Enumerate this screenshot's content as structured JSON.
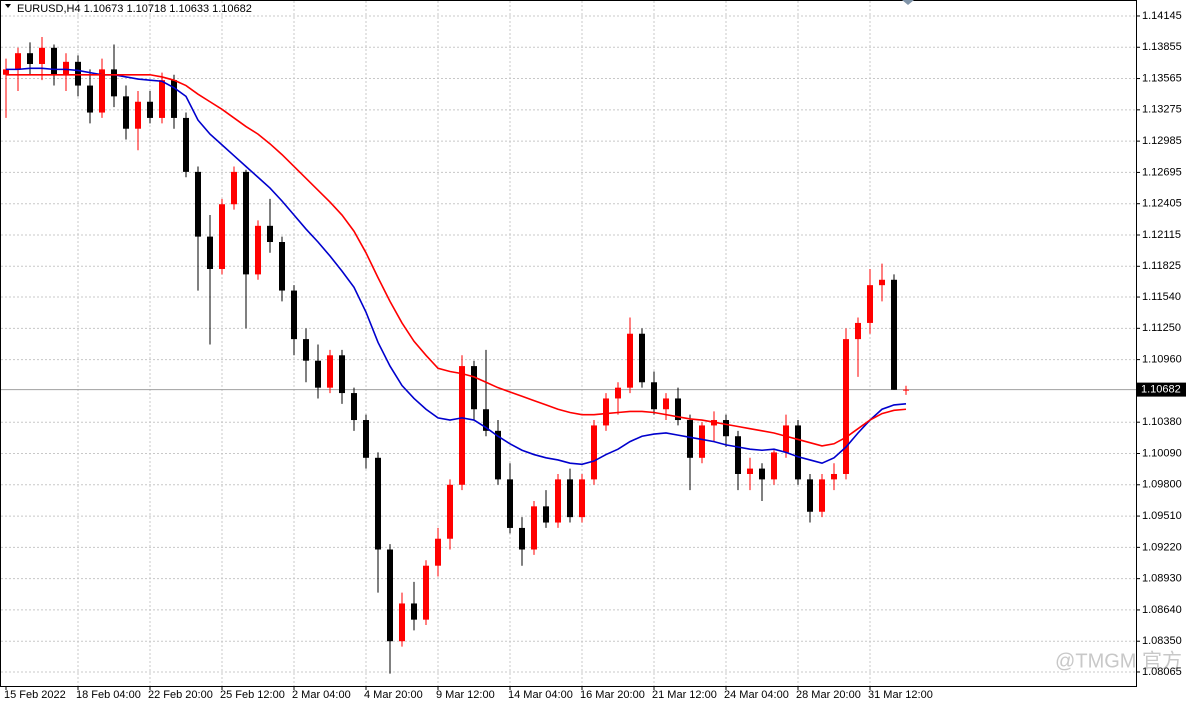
{
  "chart_data": {
    "type": "candlestick",
    "symbol": "EURUSD,H4",
    "categories": [
      "15 Feb 2022",
      null,
      null,
      null,
      null,
      null,
      "18 Feb 04:00",
      null,
      null,
      null,
      null,
      null,
      "22 Feb 20:00",
      null,
      null,
      null,
      null,
      null,
      "25 Feb 12:00",
      null,
      null,
      null,
      null,
      null,
      "2 Mar 04:00",
      null,
      null,
      null,
      null,
      null,
      "4 Mar 20:00",
      null,
      null,
      null,
      null,
      null,
      "9 Mar 12:00",
      null,
      null,
      null,
      null,
      null,
      "14 Mar 04:00",
      null,
      null,
      null,
      null,
      null,
      "16 Mar 20:00",
      null,
      null,
      null,
      null,
      null,
      "21 Mar 12:00",
      null,
      null,
      null,
      null,
      null,
      "24 Mar 04:00",
      null,
      null,
      null,
      null,
      null,
      "28 Mar 20:00",
      null,
      null,
      null,
      null,
      null,
      "31 Mar 12:00",
      null,
      null,
      null
    ],
    "open": [
      1.136,
      1.1365,
      1.138,
      1.137,
      1.1385,
      1.136,
      1.1372,
      1.135,
      1.1325,
      1.1365,
      1.134,
      1.131,
      1.1335,
      1.132,
      1.1355,
      1.132,
      1.127,
      1.121,
      1.118,
      1.124,
      1.127,
      1.1175,
      1.122,
      1.1205,
      1.116,
      1.1115,
      1.1095,
      1.107,
      1.11,
      1.1065,
      1.104,
      1.1005,
      1.092,
      1.0835,
      1.087,
      1.0855,
      1.0905,
      1.093,
      1.098,
      1.109,
      1.105,
      1.103,
      1.0985,
      1.094,
      1.092,
      1.096,
      1.0945,
      1.0985,
      1.095,
      1.0985,
      1.1035,
      1.106,
      1.107,
      1.112,
      1.1075,
      1.105,
      1.106,
      1.104,
      1.1005,
      1.1035,
      1.104,
      1.1025,
      1.099,
      1.0995,
      1.0985,
      1.101,
      1.1035,
      1.0985,
      1.0955,
      1.0985,
      1.099,
      1.1115,
      1.113,
      1.1165,
      1.117,
      1.10673
    ],
    "high": [
      1.1375,
      1.1385,
      1.139,
      1.1395,
      1.1388,
      1.138,
      1.1378,
      1.1365,
      1.1375,
      1.1388,
      1.135,
      1.1345,
      1.1345,
      1.1362,
      1.136,
      1.1325,
      1.1275,
      1.123,
      1.1245,
      1.1275,
      1.1272,
      1.1225,
      1.1245,
      1.121,
      1.1165,
      1.1125,
      1.111,
      1.1105,
      1.1105,
      1.107,
      1.1045,
      1.101,
      1.0925,
      1.088,
      1.089,
      1.091,
      1.094,
      1.0985,
      1.11,
      1.1095,
      1.1105,
      1.104,
      1.1,
      1.095,
      1.0965,
      1.0975,
      1.099,
      1.0995,
      1.099,
      1.104,
      1.1065,
      1.1075,
      1.1135,
      1.1125,
      1.1085,
      1.1065,
      1.107,
      1.1045,
      1.1038,
      1.1048,
      1.1045,
      1.103,
      1.1005,
      1.1,
      1.1012,
      1.1045,
      1.104,
      1.099,
      1.099,
      1.1,
      1.1125,
      1.1135,
      1.118,
      1.1185,
      1.1175,
      1.10718
    ],
    "low": [
      1.132,
      1.1345,
      1.136,
      1.1355,
      1.135,
      1.1345,
      1.134,
      1.1315,
      1.132,
      1.133,
      1.13,
      1.129,
      1.1315,
      1.1315,
      1.131,
      1.1265,
      1.116,
      1.111,
      1.1175,
      1.1235,
      1.1125,
      1.117,
      1.1195,
      1.115,
      1.11,
      1.1075,
      1.106,
      1.1065,
      1.1055,
      1.103,
      1.0995,
      1.088,
      1.0805,
      1.083,
      1.0845,
      1.085,
      1.0895,
      1.092,
      1.0975,
      1.104,
      1.1025,
      1.098,
      1.0935,
      1.0905,
      1.0915,
      1.094,
      1.094,
      1.0945,
      1.0945,
      1.098,
      1.103,
      1.1045,
      1.1065,
      1.107,
      1.1045,
      1.104,
      1.1035,
      1.0975,
      1.1,
      1.102,
      1.1015,
      1.0975,
      1.0975,
      1.0965,
      1.098,
      1.1005,
      1.098,
      1.0945,
      1.095,
      1.0975,
      1.0985,
      1.108,
      1.112,
      1.115,
      1.1068,
      1.10633
    ],
    "close": [
      1.1365,
      1.138,
      1.137,
      1.1385,
      1.136,
      1.1372,
      1.135,
      1.1325,
      1.1365,
      1.134,
      1.131,
      1.1335,
      1.132,
      1.1355,
      1.132,
      1.127,
      1.121,
      1.118,
      1.124,
      1.127,
      1.1175,
      1.122,
      1.1205,
      1.116,
      1.1115,
      1.1095,
      1.107,
      1.11,
      1.1065,
      1.104,
      1.1005,
      1.092,
      1.0835,
      1.087,
      1.0855,
      1.0905,
      1.093,
      1.098,
      1.109,
      1.105,
      1.103,
      1.0985,
      1.094,
      1.092,
      1.096,
      1.0945,
      1.0985,
      1.095,
      1.0985,
      1.1035,
      1.106,
      1.107,
      1.112,
      1.1075,
      1.105,
      1.106,
      1.104,
      1.1005,
      1.1035,
      1.104,
      1.1025,
      1.099,
      1.0995,
      1.0985,
      1.101,
      1.1035,
      1.0985,
      1.0955,
      1.0985,
      1.099,
      1.1115,
      1.113,
      1.1165,
      1.117,
      1.1068,
      1.10682
    ],
    "up_color": "#ff0000",
    "down_color": "#000000",
    "series": [
      {
        "color": "#0000cd",
        "values": [
          1.1365,
          1.1365,
          1.1366,
          1.1366,
          1.1365,
          1.1365,
          1.1364,
          1.1362,
          1.136,
          1.136,
          1.1358,
          1.1356,
          1.1355,
          1.1354,
          1.1348,
          1.134,
          1.1318,
          1.1305,
          1.1295,
          1.1285,
          1.1275,
          1.1265,
          1.1255,
          1.1243,
          1.123,
          1.1217,
          1.1205,
          1.1192,
          1.1178,
          1.1163,
          1.114,
          1.1112,
          1.109,
          1.1072,
          1.106,
          1.105,
          1.1042,
          1.104,
          1.1042,
          1.104,
          1.1033,
          1.1025,
          1.1018,
          1.1012,
          1.1008,
          1.1005,
          1.1003,
          1.1,
          1.0999,
          1.1002,
          1.1008,
          1.1013,
          1.102,
          1.1025,
          1.1027,
          1.1028,
          1.1026,
          1.1024,
          1.1022,
          1.102,
          1.1017,
          1.1015,
          1.1013,
          1.1012,
          1.1013,
          1.101,
          1.1006,
          1.1003,
          1.1,
          1.1005,
          1.1015,
          1.1028,
          1.104,
          1.105,
          1.1054,
          1.1055
        ]
      },
      {
        "color": "#ff0000",
        "values": [
          1.136,
          1.136,
          1.136,
          1.136,
          1.136,
          1.136,
          1.136,
          1.136,
          1.136,
          1.136,
          1.136,
          1.136,
          1.136,
          1.1358,
          1.1355,
          1.135,
          1.1342,
          1.1335,
          1.1328,
          1.132,
          1.1312,
          1.1305,
          1.1296,
          1.1286,
          1.1275,
          1.1264,
          1.1253,
          1.1242,
          1.123,
          1.1215,
          1.1195,
          1.1172,
          1.115,
          1.113,
          1.1113,
          1.11,
          1.1088,
          1.1085,
          1.1083,
          1.108,
          1.1075,
          1.107,
          1.1066,
          1.1062,
          1.1058,
          1.1054,
          1.105,
          1.1047,
          1.1045,
          1.1045,
          1.1046,
          1.1047,
          1.1048,
          1.1048,
          1.1047,
          1.1045,
          1.1043,
          1.1041,
          1.104,
          1.1038,
          1.1036,
          1.1034,
          1.1032,
          1.103,
          1.1028,
          1.1025,
          1.1022,
          1.1019,
          1.1016,
          1.1018,
          1.1024,
          1.1032,
          1.104,
          1.1046,
          1.1049,
          1.105
        ]
      }
    ],
    "ylim": [
      1.07935,
      1.14293
    ],
    "yticks": [
      1.14145,
      1.13855,
      1.13565,
      1.13275,
      1.12985,
      1.12695,
      1.12405,
      1.12115,
      1.11825,
      {
        "value": 1.1154,
        "label": "1.11540"
      },
      {
        "value": 1.1125,
        "label": "1.11250"
      },
      {
        "value": 1.1096,
        "label": "1.10960"
      },
      {
        "value": 1.1038,
        "label": "1.10380"
      },
      {
        "value": 1.1009,
        "label": "1.10090"
      },
      {
        "value": 1.098,
        "label": "1.09800"
      },
      {
        "value": 1.0951,
        "label": "1.09510"
      },
      {
        "value": 1.0922,
        "label": "1.09220"
      },
      {
        "value": 1.0893,
        "label": "1.08930"
      },
      {
        "value": 1.0864,
        "label": "1.08640"
      },
      {
        "value": 1.0835,
        "label": "1.08350"
      },
      1.08065
    ],
    "grid": true,
    "watermark": "@TMGM 官方"
  }
}
